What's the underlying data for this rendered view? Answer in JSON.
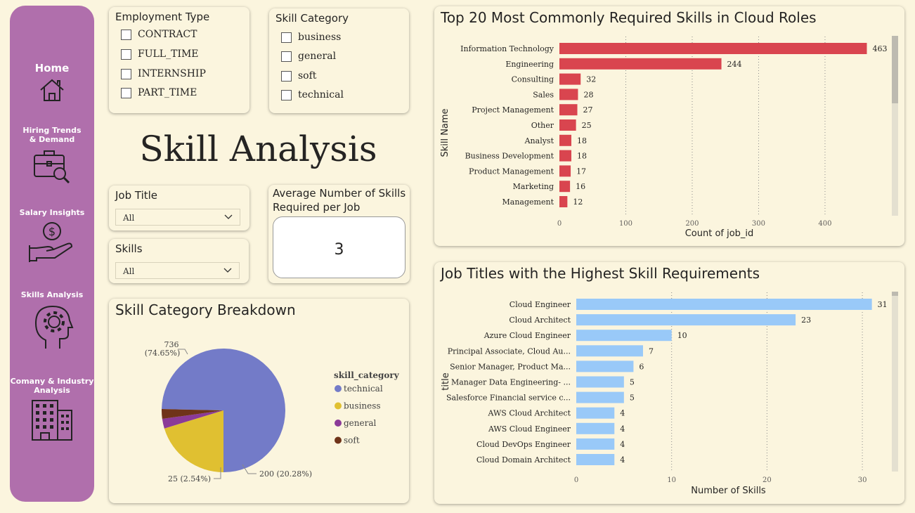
{
  "sidebar": {
    "items": [
      {
        "label": "Home",
        "icon": "home-icon"
      },
      {
        "label": "Hiring Trends\n& Demand",
        "icon": "briefcase-search-icon"
      },
      {
        "label": "Salary Insights",
        "icon": "salary-hand-icon"
      },
      {
        "label": "Skills Analysis",
        "icon": "head-gear-icon"
      },
      {
        "label": "Comany & Industry\nAnalysis",
        "icon": "building-icon"
      }
    ]
  },
  "filters": {
    "employment_type": {
      "title": "Employment Type",
      "options": [
        "CONTRACT",
        "FULL_TIME",
        "INTERNSHIP",
        "PART_TIME"
      ]
    },
    "skill_category": {
      "title": "Skill Category",
      "options": [
        "business",
        "general",
        "soft",
        "technical"
      ]
    },
    "job_title": {
      "title": "Job Title",
      "value": "All"
    },
    "skills": {
      "title": "Skills",
      "value": "All"
    }
  },
  "page_title": "Skill Analysis",
  "kpi": {
    "title": "Average Number of Skills Required per Job",
    "value": "3"
  },
  "colors": {
    "sidebar": "#b06fac",
    "background": "#fbf5de",
    "red_bar": "#d9454f",
    "blue_bar": "#99c9f8",
    "pie_technical": "#737bc8",
    "pie_business": "#e0c031",
    "pie_general": "#8b3a98",
    "pie_soft": "#6f3319"
  },
  "chart_data": [
    {
      "type": "bar",
      "orientation": "horizontal",
      "title": "Top 20 Most Commonly Required Skills in Cloud Roles",
      "xlabel": "Count of job_id",
      "ylabel": "Skill Name",
      "categories": [
        "Information Technology",
        "Engineering",
        "Consulting",
        "Sales",
        "Project Management",
        "Other",
        "Analyst",
        "Business Development",
        "Product Management",
        "Marketing",
        "Management"
      ],
      "values": [
        463,
        244,
        32,
        28,
        27,
        25,
        18,
        18,
        17,
        16,
        12
      ],
      "xticks": [
        0,
        100,
        200,
        300,
        400
      ],
      "xlim": [
        0,
        490
      ],
      "grid": "vertical-dotted",
      "color": "#d9454f"
    },
    {
      "type": "bar",
      "orientation": "horizontal",
      "title": "Job Titles with the Highest Skill Requirements",
      "xlabel": "Number of Skills",
      "ylabel": "title",
      "categories": [
        "Cloud Engineer",
        "Cloud Architect",
        "Azure Cloud Engineer",
        "Principal Associate, Cloud Au...",
        "Senior Manager, Product Ma...",
        "Manager Data Engineering- ...",
        "Salesforce Financial service c...",
        "AWS Cloud Architect",
        "AWS Cloud Engineer",
        "Cloud DevOps Engineer",
        "Cloud Domain Architect"
      ],
      "values": [
        31,
        23,
        10,
        7,
        6,
        5,
        5,
        4,
        4,
        4,
        4
      ],
      "xticks": [
        0,
        10,
        20,
        30
      ],
      "xlim": [
        0,
        32.5
      ],
      "grid": "vertical-dotted",
      "color": "#99c9f8"
    },
    {
      "type": "pie",
      "title": "Skill Category Breakdown",
      "legend_title": "skill_category",
      "legend_position": "right",
      "slices": [
        {
          "name": "technical",
          "value": 736,
          "label": "736\n(74.65%)",
          "color": "#737bc8"
        },
        {
          "name": "business",
          "value": 200,
          "label": "200 (20.28%)",
          "color": "#e0c031"
        },
        {
          "name": "general",
          "value": 25,
          "label": "25 (2.54%)",
          "color": "#8b3a98"
        },
        {
          "name": "soft",
          "value": 25,
          "label": "",
          "color": "#6f3319"
        }
      ]
    }
  ]
}
